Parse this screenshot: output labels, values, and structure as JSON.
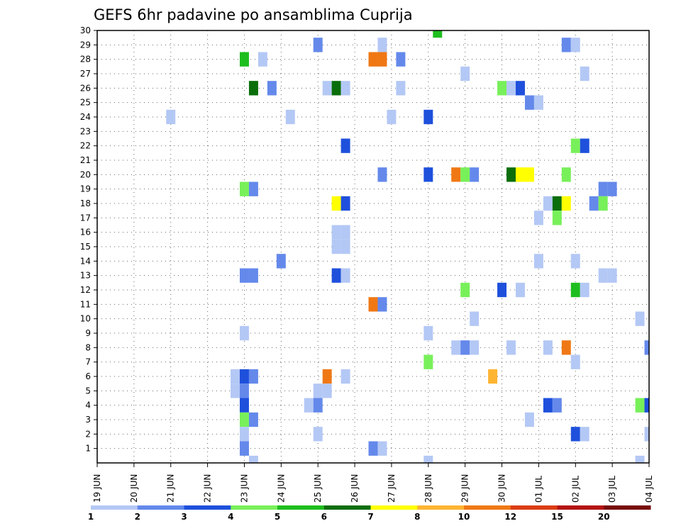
{
  "chart_data": {
    "type": "heatmap",
    "title": "GEFS 6hr padavine po ansamblima Cuprija",
    "x_labels": [
      "19 JUN",
      "20 JUN",
      "21 JUN",
      "22 JUN",
      "23 JUN",
      "24 JUN",
      "25 JUN",
      "26 JUN",
      "27 JUN",
      "28 JUN",
      "29 JUN",
      "30 JUN",
      "01 JUL",
      "02 JUL",
      "03 JUL",
      "04 JUL"
    ],
    "x_range_days": [
      0,
      15
    ],
    "y_ticks": [
      1,
      2,
      3,
      4,
      5,
      6,
      7,
      8,
      9,
      10,
      11,
      12,
      13,
      14,
      15,
      16,
      17,
      18,
      19,
      20,
      21,
      22,
      23,
      24,
      25,
      26,
      27,
      28,
      29,
      30
    ],
    "ylim": [
      0,
      30
    ],
    "grid": true,
    "legend": {
      "position": "bottom",
      "labels": [
        "1",
        "2",
        "3",
        "4",
        "5",
        "6",
        "7",
        "8",
        "10",
        "12",
        "15",
        "20"
      ],
      "colors": [
        "#b4c8f5",
        "#6489eb",
        "#1e50dc",
        "#78f05a",
        "#1ebe1e",
        "#0a6e0a",
        "#ffff00",
        "#ffb432",
        "#f07814",
        "#dc3c14",
        "#b41414",
        "#780a0a"
      ]
    },
    "cells": [
      {
        "member": 30,
        "day": 9.25,
        "level": 5
      },
      {
        "member": 29,
        "day": 6.0,
        "level": 2
      },
      {
        "member": 29,
        "day": 7.75,
        "level": 1
      },
      {
        "member": 29,
        "day": 12.75,
        "level": 2
      },
      {
        "member": 29,
        "day": 13.0,
        "level": 1
      },
      {
        "member": 28,
        "day": 4.0,
        "level": 5
      },
      {
        "member": 28,
        "day": 4.5,
        "level": 1
      },
      {
        "member": 28,
        "day": 7.5,
        "level": 9
      },
      {
        "member": 28,
        "day": 7.75,
        "level": 9
      },
      {
        "member": 28,
        "day": 8.25,
        "level": 2
      },
      {
        "member": 27,
        "day": 10.0,
        "level": 1
      },
      {
        "member": 27,
        "day": 13.25,
        "level": 1
      },
      {
        "member": 26,
        "day": 4.25,
        "level": 6
      },
      {
        "member": 26,
        "day": 4.75,
        "level": 2
      },
      {
        "member": 26,
        "day": 6.25,
        "level": 1
      },
      {
        "member": 26,
        "day": 6.5,
        "level": 6
      },
      {
        "member": 26,
        "day": 6.75,
        "level": 1
      },
      {
        "member": 26,
        "day": 8.25,
        "level": 1
      },
      {
        "member": 26,
        "day": 11.0,
        "level": 4
      },
      {
        "member": 26,
        "day": 11.25,
        "level": 1
      },
      {
        "member": 26,
        "day": 11.5,
        "level": 3
      },
      {
        "member": 25,
        "day": 11.75,
        "level": 2
      },
      {
        "member": 25,
        "day": 12.0,
        "level": 1
      },
      {
        "member": 24,
        "day": 2.0,
        "level": 1
      },
      {
        "member": 24,
        "day": 5.25,
        "level": 1
      },
      {
        "member": 24,
        "day": 8.0,
        "level": 1
      },
      {
        "member": 24,
        "day": 9.0,
        "level": 3
      },
      {
        "member": 22,
        "day": 6.75,
        "level": 3
      },
      {
        "member": 22,
        "day": 13.0,
        "level": 4
      },
      {
        "member": 22,
        "day": 13.25,
        "level": 3
      },
      {
        "member": 20,
        "day": 7.75,
        "level": 2
      },
      {
        "member": 20,
        "day": 9.0,
        "level": 3
      },
      {
        "member": 20,
        "day": 9.75,
        "level": 9
      },
      {
        "member": 20,
        "day": 10.0,
        "level": 4
      },
      {
        "member": 20,
        "day": 10.25,
        "level": 2
      },
      {
        "member": 20,
        "day": 11.25,
        "level": 6
      },
      {
        "member": 20,
        "day": 11.5,
        "level": 7
      },
      {
        "member": 20,
        "day": 11.75,
        "level": 7
      },
      {
        "member": 20,
        "day": 12.75,
        "level": 4
      },
      {
        "member": 19,
        "day": 4.0,
        "level": 4
      },
      {
        "member": 19,
        "day": 4.25,
        "level": 2
      },
      {
        "member": 19,
        "day": 13.75,
        "level": 2
      },
      {
        "member": 19,
        "day": 14.0,
        "level": 2
      },
      {
        "member": 18,
        "day": 6.5,
        "level": 7
      },
      {
        "member": 18,
        "day": 6.75,
        "level": 3
      },
      {
        "member": 18,
        "day": 12.25,
        "level": 1
      },
      {
        "member": 18,
        "day": 12.5,
        "level": 6
      },
      {
        "member": 18,
        "day": 12.75,
        "level": 7
      },
      {
        "member": 18,
        "day": 13.5,
        "level": 2
      },
      {
        "member": 18,
        "day": 13.75,
        "level": 4
      },
      {
        "member": 17,
        "day": 12.5,
        "level": 4
      },
      {
        "member": 17,
        "day": 12.0,
        "level": 1
      },
      {
        "member": 16,
        "day": 6.5,
        "level": 1
      },
      {
        "member": 16,
        "day": 6.75,
        "level": 1
      },
      {
        "member": 15,
        "day": 6.5,
        "level": 1
      },
      {
        "member": 15,
        "day": 6.75,
        "level": 1
      },
      {
        "member": 14,
        "day": 5.0,
        "level": 2
      },
      {
        "member": 14,
        "day": 12.0,
        "level": 1
      },
      {
        "member": 14,
        "day": 13.0,
        "level": 1
      },
      {
        "member": 13,
        "day": 4.0,
        "level": 2
      },
      {
        "member": 13,
        "day": 4.25,
        "level": 2
      },
      {
        "member": 13,
        "day": 6.5,
        "level": 3
      },
      {
        "member": 13,
        "day": 6.75,
        "level": 1
      },
      {
        "member": 13,
        "day": 13.75,
        "level": 1
      },
      {
        "member": 13,
        "day": 14.0,
        "level": 1
      },
      {
        "member": 12,
        "day": 10.0,
        "level": 4
      },
      {
        "member": 12,
        "day": 11.0,
        "level": 3
      },
      {
        "member": 12,
        "day": 11.5,
        "level": 1
      },
      {
        "member": 12,
        "day": 13.0,
        "level": 5
      },
      {
        "member": 12,
        "day": 13.25,
        "level": 1
      },
      {
        "member": 11,
        "day": 7.5,
        "level": 9
      },
      {
        "member": 11,
        "day": 7.75,
        "level": 2
      },
      {
        "member": 10,
        "day": 10.25,
        "level": 1
      },
      {
        "member": 10,
        "day": 14.75,
        "level": 1
      },
      {
        "member": 9,
        "day": 4.0,
        "level": 1
      },
      {
        "member": 9,
        "day": 9.0,
        "level": 1
      },
      {
        "member": 8,
        "day": 9.75,
        "level": 1
      },
      {
        "member": 8,
        "day": 10.0,
        "level": 2
      },
      {
        "member": 8,
        "day": 10.25,
        "level": 1
      },
      {
        "member": 8,
        "day": 11.25,
        "level": 1
      },
      {
        "member": 8,
        "day": 12.25,
        "level": 1
      },
      {
        "member": 8,
        "day": 12.75,
        "level": 9
      },
      {
        "member": 8,
        "day": 15.0,
        "level": 2
      },
      {
        "member": 7,
        "day": 9.0,
        "level": 4
      },
      {
        "member": 7,
        "day": 13.0,
        "level": 1
      },
      {
        "member": 6,
        "day": 3.75,
        "level": 1
      },
      {
        "member": 6,
        "day": 4.0,
        "level": 3
      },
      {
        "member": 6,
        "day": 4.25,
        "level": 2
      },
      {
        "member": 6,
        "day": 6.25,
        "level": 9
      },
      {
        "member": 6,
        "day": 6.75,
        "level": 1
      },
      {
        "member": 6,
        "day": 10.75,
        "level": 8
      },
      {
        "member": 5,
        "day": 3.75,
        "level": 1
      },
      {
        "member": 5,
        "day": 4.0,
        "level": 2
      },
      {
        "member": 5,
        "day": 6.0,
        "level": 1
      },
      {
        "member": 5,
        "day": 6.25,
        "level": 1
      },
      {
        "member": 4,
        "day": 4.0,
        "level": 3
      },
      {
        "member": 4,
        "day": 5.75,
        "level": 1
      },
      {
        "member": 4,
        "day": 6.0,
        "level": 2
      },
      {
        "member": 4,
        "day": 12.25,
        "level": 3
      },
      {
        "member": 4,
        "day": 12.5,
        "level": 2
      },
      {
        "member": 4,
        "day": 14.75,
        "level": 4
      },
      {
        "member": 4,
        "day": 15.0,
        "level": 3
      },
      {
        "member": 3,
        "day": 4.0,
        "level": 4
      },
      {
        "member": 3,
        "day": 4.25,
        "level": 2
      },
      {
        "member": 3,
        "day": 11.75,
        "level": 1
      },
      {
        "member": 2,
        "day": 4.0,
        "level": 1
      },
      {
        "member": 2,
        "day": 6.0,
        "level": 1
      },
      {
        "member": 2,
        "day": 13.0,
        "level": 3
      },
      {
        "member": 2,
        "day": 13.25,
        "level": 1
      },
      {
        "member": 2,
        "day": 15.0,
        "level": 1
      },
      {
        "member": 1,
        "day": 4.0,
        "level": 2
      },
      {
        "member": 1,
        "day": 7.5,
        "level": 2
      },
      {
        "member": 1,
        "day": 7.75,
        "level": 1
      },
      {
        "member": 0,
        "day": 4.25,
        "level": 1
      },
      {
        "member": 0,
        "day": 9.0,
        "level": 1
      },
      {
        "member": 0,
        "day": 14.75,
        "level": 1
      }
    ]
  }
}
